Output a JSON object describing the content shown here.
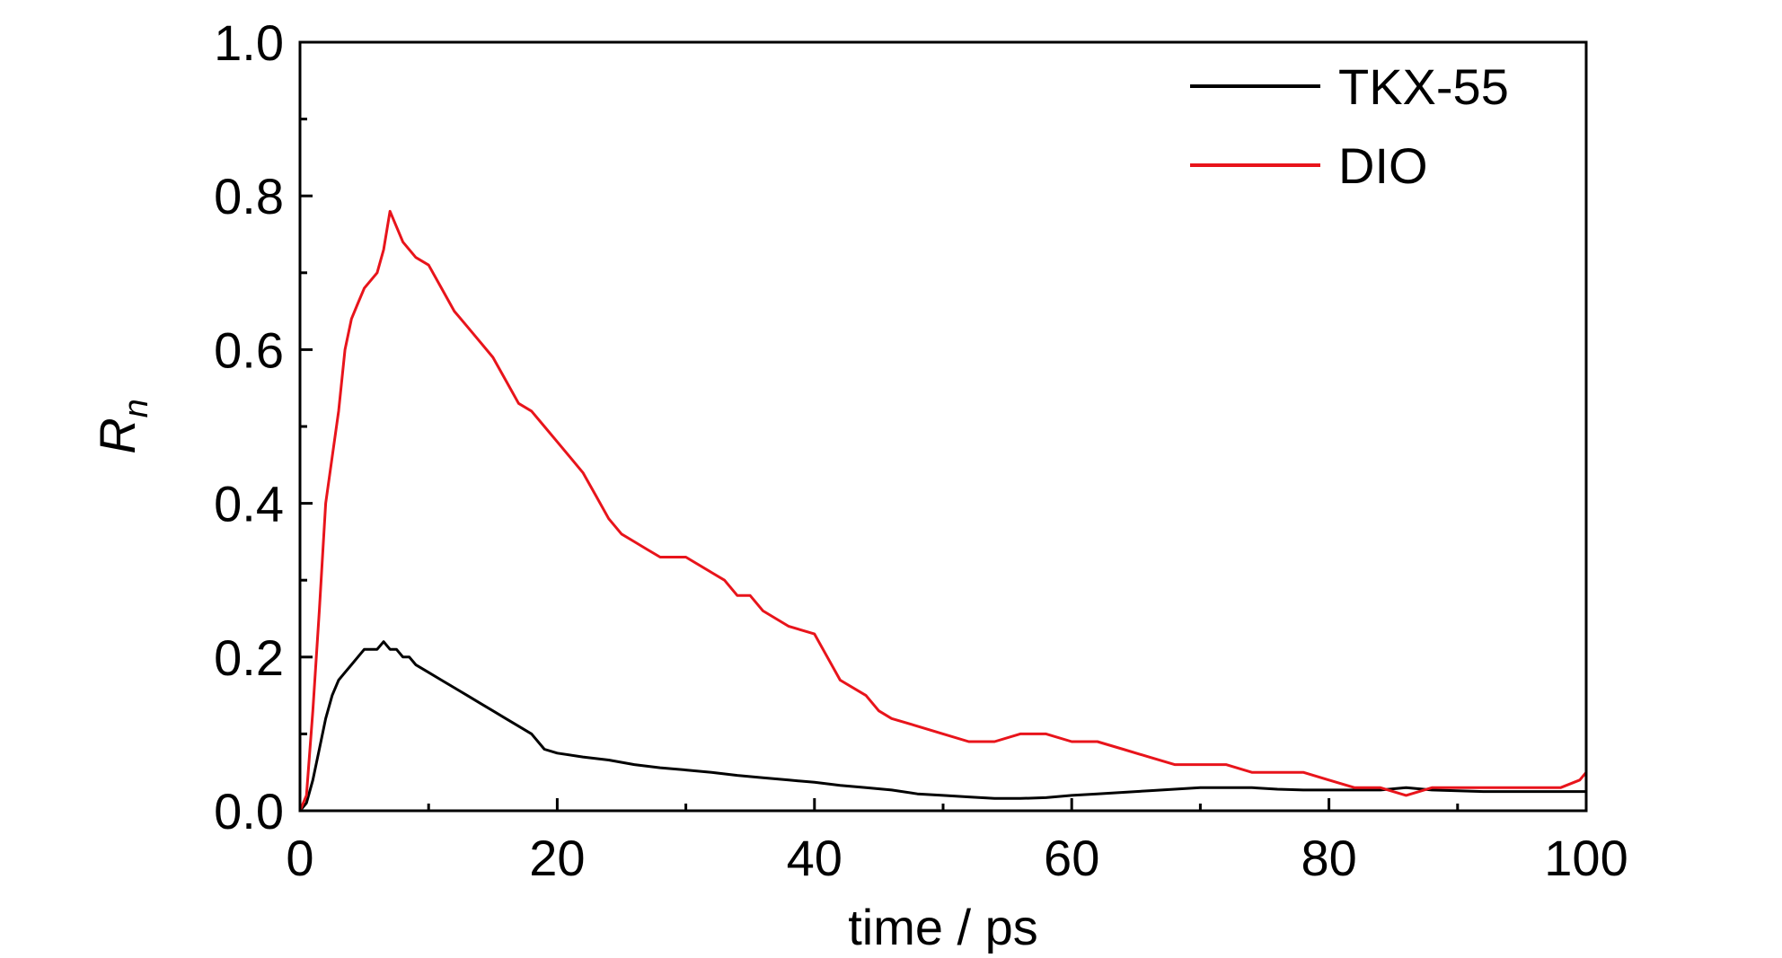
{
  "chart_data": {
    "type": "line",
    "title": "",
    "xlabel": "time / ps",
    "ylabel": {
      "main": "R",
      "sub": "n"
    },
    "xlim": [
      0,
      100
    ],
    "ylim": [
      0,
      1.0
    ],
    "x_ticks": [
      "0",
      "20",
      "40",
      "60",
      "80",
      "100"
    ],
    "y_ticks": [
      "0.0",
      "0.2",
      "0.4",
      "0.6",
      "0.8",
      "1.0"
    ],
    "grid": false,
    "legend_position": "top-right",
    "series": [
      {
        "name": "TKX-55",
        "color": "#000000",
        "points": [
          [
            0,
            0.0
          ],
          [
            0.5,
            0.01
          ],
          [
            1,
            0.04
          ],
          [
            1.5,
            0.08
          ],
          [
            2,
            0.12
          ],
          [
            2.5,
            0.15
          ],
          [
            3,
            0.17
          ],
          [
            3.5,
            0.18
          ],
          [
            4,
            0.19
          ],
          [
            4.5,
            0.2
          ],
          [
            5,
            0.21
          ],
          [
            5.5,
            0.21
          ],
          [
            6,
            0.21
          ],
          [
            6.5,
            0.22
          ],
          [
            7,
            0.21
          ],
          [
            7.5,
            0.21
          ],
          [
            8,
            0.2
          ],
          [
            8.5,
            0.2
          ],
          [
            9,
            0.19
          ],
          [
            10,
            0.18
          ],
          [
            11,
            0.17
          ],
          [
            12,
            0.16
          ],
          [
            13,
            0.15
          ],
          [
            14,
            0.14
          ],
          [
            15,
            0.13
          ],
          [
            16,
            0.12
          ],
          [
            17,
            0.11
          ],
          [
            18,
            0.1
          ],
          [
            19,
            0.08
          ],
          [
            20,
            0.075
          ],
          [
            22,
            0.07
          ],
          [
            24,
            0.066
          ],
          [
            26,
            0.06
          ],
          [
            28,
            0.056
          ],
          [
            30,
            0.053
          ],
          [
            32,
            0.05
          ],
          [
            34,
            0.046
          ],
          [
            36,
            0.043
          ],
          [
            38,
            0.04
          ],
          [
            40,
            0.037
          ],
          [
            42,
            0.033
          ],
          [
            44,
            0.03
          ],
          [
            46,
            0.027
          ],
          [
            48,
            0.022
          ],
          [
            50,
            0.02
          ],
          [
            52,
            0.018
          ],
          [
            54,
            0.016
          ],
          [
            56,
            0.016
          ],
          [
            58,
            0.017
          ],
          [
            60,
            0.02
          ],
          [
            62,
            0.022
          ],
          [
            64,
            0.024
          ],
          [
            66,
            0.026
          ],
          [
            68,
            0.028
          ],
          [
            70,
            0.03
          ],
          [
            72,
            0.03
          ],
          [
            74,
            0.03
          ],
          [
            76,
            0.028
          ],
          [
            78,
            0.027
          ],
          [
            80,
            0.027
          ],
          [
            82,
            0.027
          ],
          [
            84,
            0.027
          ],
          [
            86,
            0.03
          ],
          [
            88,
            0.027
          ],
          [
            90,
            0.026
          ],
          [
            92,
            0.025
          ],
          [
            94,
            0.025
          ],
          [
            96,
            0.025
          ],
          [
            98,
            0.025
          ],
          [
            100,
            0.025
          ]
        ]
      },
      {
        "name": "DIO",
        "color": "#e8141b",
        "points": [
          [
            0,
            0.0
          ],
          [
            0.5,
            0.02
          ],
          [
            1,
            0.13
          ],
          [
            1.5,
            0.26
          ],
          [
            2,
            0.4
          ],
          [
            2.5,
            0.46
          ],
          [
            3,
            0.52
          ],
          [
            3.5,
            0.6
          ],
          [
            4,
            0.64
          ],
          [
            4.5,
            0.66
          ],
          [
            5,
            0.68
          ],
          [
            6,
            0.7
          ],
          [
            6.5,
            0.73
          ],
          [
            7,
            0.78
          ],
          [
            7.5,
            0.76
          ],
          [
            8,
            0.74
          ],
          [
            8.5,
            0.73
          ],
          [
            9,
            0.72
          ],
          [
            10,
            0.71
          ],
          [
            11,
            0.68
          ],
          [
            12,
            0.65
          ],
          [
            13,
            0.63
          ],
          [
            14,
            0.61
          ],
          [
            15,
            0.59
          ],
          [
            16,
            0.56
          ],
          [
            17,
            0.53
          ],
          [
            18,
            0.52
          ],
          [
            19,
            0.5
          ],
          [
            20,
            0.48
          ],
          [
            21,
            0.46
          ],
          [
            22,
            0.44
          ],
          [
            23,
            0.41
          ],
          [
            24,
            0.38
          ],
          [
            25,
            0.36
          ],
          [
            26,
            0.35
          ],
          [
            27,
            0.34
          ],
          [
            28,
            0.33
          ],
          [
            30,
            0.33
          ],
          [
            32,
            0.31
          ],
          [
            33,
            0.3
          ],
          [
            34,
            0.28
          ],
          [
            35,
            0.28
          ],
          [
            36,
            0.26
          ],
          [
            38,
            0.24
          ],
          [
            40,
            0.23
          ],
          [
            41,
            0.2
          ],
          [
            42,
            0.17
          ],
          [
            44,
            0.15
          ],
          [
            45,
            0.13
          ],
          [
            46,
            0.12
          ],
          [
            48,
            0.11
          ],
          [
            50,
            0.1
          ],
          [
            52,
            0.09
          ],
          [
            54,
            0.09
          ],
          [
            56,
            0.1
          ],
          [
            58,
            0.1
          ],
          [
            60,
            0.09
          ],
          [
            62,
            0.09
          ],
          [
            64,
            0.08
          ],
          [
            66,
            0.07
          ],
          [
            68,
            0.06
          ],
          [
            70,
            0.06
          ],
          [
            72,
            0.06
          ],
          [
            74,
            0.05
          ],
          [
            76,
            0.05
          ],
          [
            78,
            0.05
          ],
          [
            80,
            0.04
          ],
          [
            82,
            0.03
          ],
          [
            84,
            0.03
          ],
          [
            86,
            0.02
          ],
          [
            88,
            0.03
          ],
          [
            90,
            0.03
          ],
          [
            92,
            0.03
          ],
          [
            94,
            0.03
          ],
          [
            96,
            0.03
          ],
          [
            98,
            0.03
          ],
          [
            99.5,
            0.04
          ],
          [
            100,
            0.05
          ]
        ]
      }
    ]
  }
}
